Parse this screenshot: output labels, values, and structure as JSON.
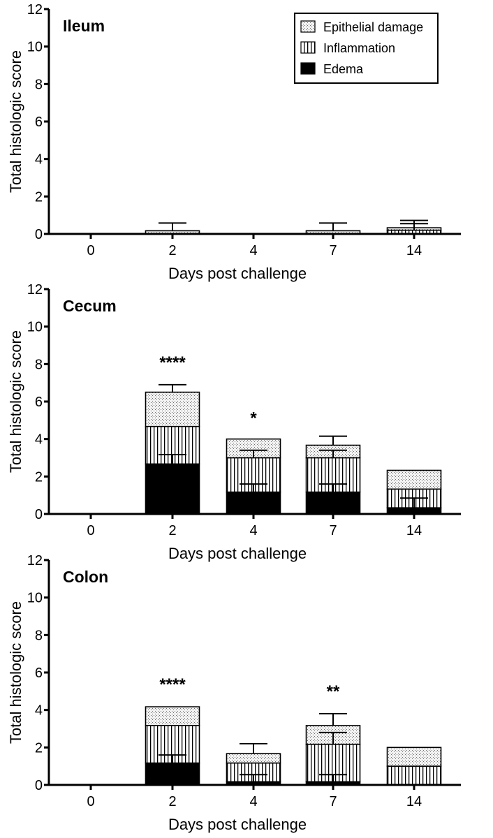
{
  "chart_data": [
    {
      "type": "bar",
      "stacked": true,
      "title": "Ileum",
      "xlabel": "Days post challenge",
      "ylabel": "Total histologic score",
      "ylim": [
        0,
        12
      ],
      "yticks": [
        "0",
        "2",
        "4",
        "6",
        "8",
        "10",
        "12"
      ],
      "categories": [
        "0",
        "2",
        "4",
        "7",
        "14"
      ],
      "series": [
        {
          "name": "Edema",
          "values": [
            0,
            0,
            0,
            0,
            0
          ]
        },
        {
          "name": "Inflammation",
          "values": [
            0,
            0,
            0,
            0,
            0.2
          ]
        },
        {
          "name": "Epithelial damage",
          "values": [
            0,
            0.17,
            0,
            0.17,
            0.13
          ]
        }
      ],
      "error_bars": [
        [],
        [
          {
            "level": 0.17,
            "upper": 0.58
          }
        ],
        [],
        [
          {
            "level": 0.17,
            "upper": 0.58
          }
        ],
        [
          {
            "level": 0.2,
            "upper": 0.55
          },
          {
            "level": 0.33,
            "upper": 0.72
          }
        ]
      ],
      "significance": [
        "",
        "",
        "",
        "",
        ""
      ],
      "legend": {
        "position": "top-right",
        "entries": [
          "Epithelial damage",
          "Inflammation",
          "Edema"
        ]
      }
    },
    {
      "type": "bar",
      "stacked": true,
      "title": "Cecum",
      "xlabel": "Days post challenge",
      "ylabel": "Total histologic score",
      "ylim": [
        0,
        12
      ],
      "yticks": [
        "0",
        "2",
        "4",
        "6",
        "8",
        "10",
        "12"
      ],
      "categories": [
        "0",
        "2",
        "4",
        "7",
        "14"
      ],
      "series": [
        {
          "name": "Edema",
          "values": [
            0,
            2.67,
            1.17,
            1.17,
            0.33
          ]
        },
        {
          "name": "Inflammation",
          "values": [
            0,
            2.0,
            1.83,
            1.83,
            1.0
          ]
        },
        {
          "name": "Epithelial damage",
          "values": [
            0,
            1.83,
            1.0,
            0.67,
            1.0
          ]
        }
      ],
      "error_bars": [
        [],
        [
          {
            "level": 2.67,
            "upper": 3.17
          },
          {
            "level": 6.5,
            "upper": 6.9
          }
        ],
        [
          {
            "level": 1.17,
            "upper": 1.6
          },
          {
            "level": 3.0,
            "upper": 3.4
          }
        ],
        [
          {
            "level": 1.17,
            "upper": 1.6
          },
          {
            "level": 3.0,
            "upper": 3.4
          },
          {
            "level": 3.67,
            "upper": 4.15
          }
        ],
        [
          {
            "level": 0.33,
            "upper": 0.85
          }
        ]
      ],
      "significance": [
        "",
        "****",
        "*",
        "",
        ""
      ]
    },
    {
      "type": "bar",
      "stacked": true,
      "title": "Colon",
      "xlabel": "Days post challenge",
      "ylabel": "Total histologic score",
      "ylim": [
        0,
        12
      ],
      "yticks": [
        "0",
        "2",
        "4",
        "6",
        "8",
        "10",
        "12"
      ],
      "categories": [
        "0",
        "2",
        "4",
        "7",
        "14"
      ],
      "series": [
        {
          "name": "Edema",
          "values": [
            0,
            1.17,
            0.17,
            0.17,
            0
          ]
        },
        {
          "name": "Inflammation",
          "values": [
            0,
            2.0,
            1.0,
            2.0,
            1.0
          ]
        },
        {
          "name": "Epithelial damage",
          "values": [
            0,
            1.0,
            0.5,
            1.0,
            1.0
          ]
        }
      ],
      "error_bars": [
        [],
        [
          {
            "level": 1.17,
            "upper": 1.6
          }
        ],
        [
          {
            "level": 0.17,
            "upper": 0.55
          },
          {
            "level": 1.67,
            "upper": 2.2
          }
        ],
        [
          {
            "level": 0.17,
            "upper": 0.55
          },
          {
            "level": 2.17,
            "upper": 2.8
          },
          {
            "level": 3.17,
            "upper": 3.8
          }
        ],
        []
      ],
      "significance": [
        "",
        "****",
        "",
        "**",
        ""
      ]
    }
  ]
}
